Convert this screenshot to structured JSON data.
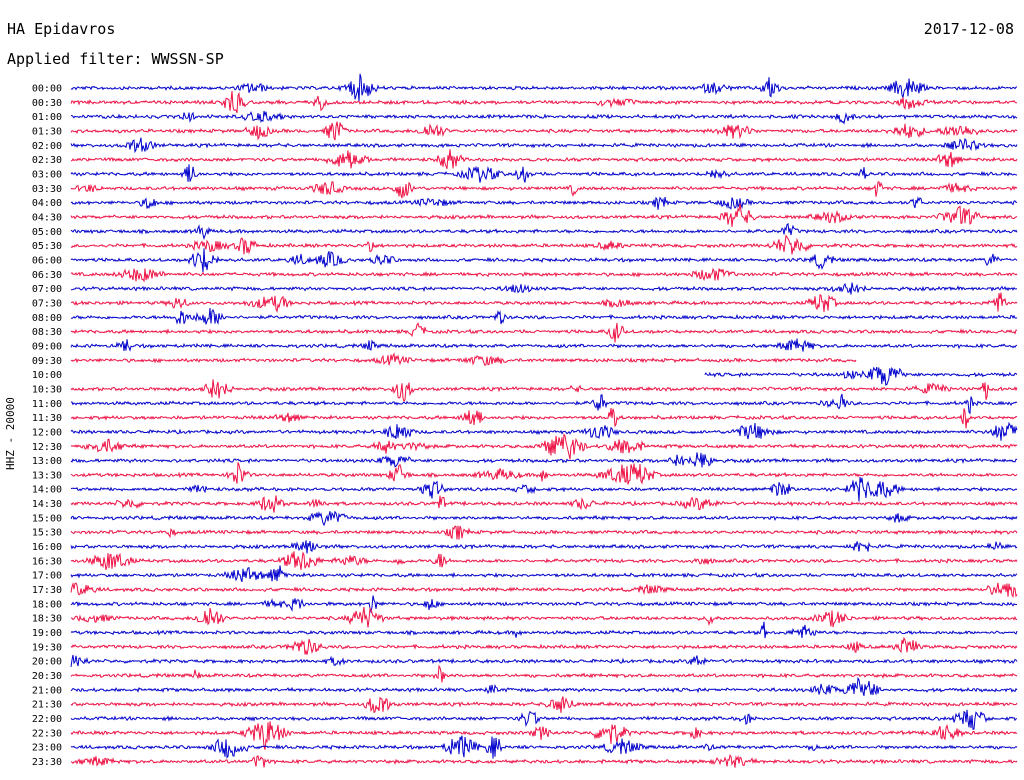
{
  "header": {
    "station": "HA Epidavros",
    "date": "2017-12-08",
    "filter": "Applied filter: WWSSN-SP"
  },
  "chart_data": {
    "type": "line",
    "ylabel": "HHZ - 20000",
    "rows": [
      "00:00",
      "00:30",
      "01:00",
      "01:30",
      "02:00",
      "02:30",
      "03:00",
      "03:30",
      "04:00",
      "04:30",
      "05:00",
      "05:30",
      "06:00",
      "06:30",
      "07:00",
      "07:30",
      "08:00",
      "08:30",
      "09:00",
      "09:30",
      "10:00",
      "10:30",
      "11:00",
      "11:30",
      "12:00",
      "12:30",
      "13:00",
      "13:30",
      "14:00",
      "14:30",
      "15:00",
      "15:30",
      "16:00",
      "16:30",
      "17:00",
      "17:30",
      "18:00",
      "18:30",
      "19:00",
      "19:30",
      "20:00",
      "20:30",
      "21:00",
      "21:30",
      "22:00",
      "22:30",
      "23:00",
      "23:30"
    ],
    "colors": [
      "#0000cc",
      "#ee1144"
    ],
    "trace_extent": {
      "09:30": [
        0,
        0.83
      ],
      "10:00": [
        0.67,
        1.0
      ]
    }
  }
}
